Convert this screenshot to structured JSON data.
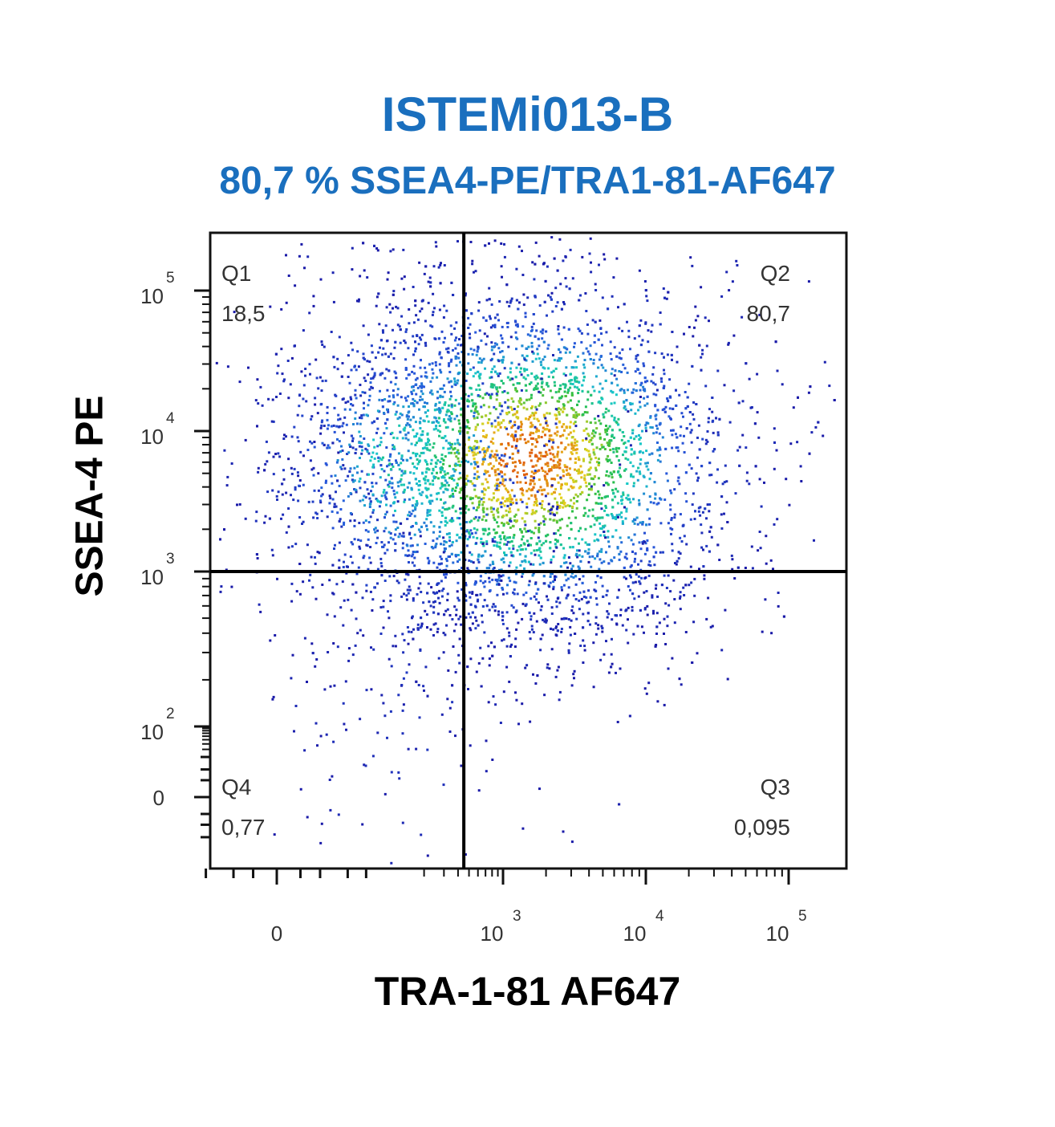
{
  "colors": {
    "title": "#1a6fbe",
    "axis": "#000000",
    "density_low": "#1a1aa8",
    "density_mid": "#18c8c8",
    "density_high": "#e06010"
  },
  "chart_data": {
    "type": "scatter",
    "title": "ISTEMi013-B",
    "subtitle": "80,7 % SSEA4-PE/TRA1-81-AF647",
    "xlabel": "TRA-1-81 AF647",
    "ylabel": "SSEA-4 PE",
    "x_scale": "biexponential",
    "y_scale": "biexponential",
    "x_ticks": [
      {
        "value": 0,
        "base": "0",
        "exp": ""
      },
      {
        "value": 1000,
        "base": "10",
        "exp": "3"
      },
      {
        "value": 10000,
        "base": "10",
        "exp": "4"
      },
      {
        "value": 100000,
        "base": "10",
        "exp": "5"
      }
    ],
    "y_ticks": [
      {
        "value": 0,
        "base": "0",
        "exp": ""
      },
      {
        "value": 100,
        "base": "10",
        "exp": "2"
      },
      {
        "value": 1000,
        "base": "10",
        "exp": "3"
      },
      {
        "value": 10000,
        "base": "10",
        "exp": "4"
      },
      {
        "value": 100000,
        "base": "10",
        "exp": "5"
      }
    ],
    "gates": {
      "x_threshold": 450,
      "y_threshold": 1000
    },
    "quadrants": [
      {
        "name": "Q1",
        "value": "18,5",
        "position": "top-left"
      },
      {
        "name": "Q2",
        "value": "80,7",
        "position": "top-right"
      },
      {
        "name": "Q3",
        "value": "0,095",
        "position": "bottom-right"
      },
      {
        "name": "Q4",
        "value": "0,77",
        "position": "bottom-left"
      }
    ],
    "populations": [
      {
        "name": "Q2 main cluster",
        "center_x": 1500,
        "center_y": 6300,
        "weight": 0.807
      },
      {
        "name": "Q1 cluster",
        "center_x": 150,
        "center_y": 6000,
        "weight": 0.185
      },
      {
        "name": "Q4 cluster",
        "center_x": 120,
        "center_y": 200,
        "weight": 0.0077
      },
      {
        "name": "Q3 cluster",
        "center_x": 2000,
        "center_y": 600,
        "weight": 0.00095
      }
    ],
    "density_colormap": "pseudocolor (blue-cyan-green-yellow-red)",
    "grid": false,
    "legend": "none"
  }
}
